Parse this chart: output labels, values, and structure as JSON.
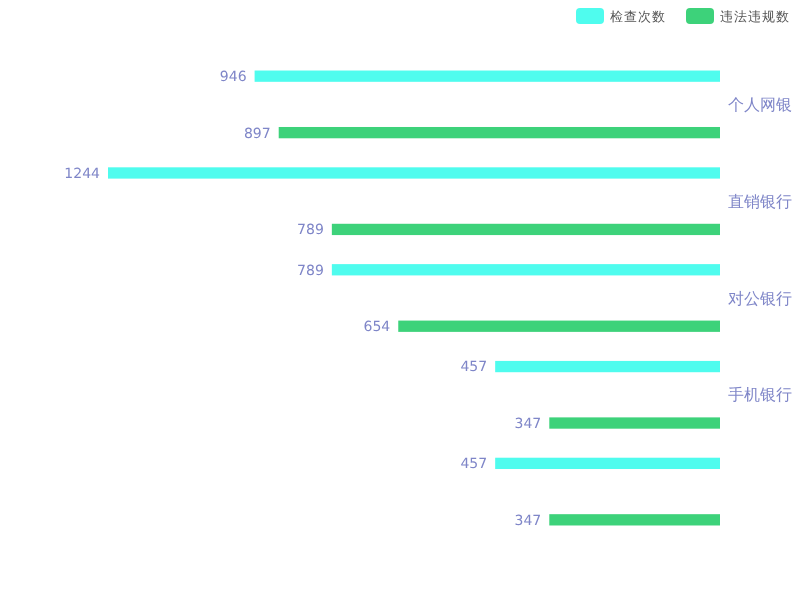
{
  "chart_data": {
    "type": "bar",
    "orientation": "horizontal",
    "categories": [
      "个人网银",
      "直销银行",
      "对公银行",
      "手机银行",
      null
    ],
    "series": [
      {
        "name": "检查次数",
        "color": "#4ffcee",
        "values": [
          946,
          1244,
          789,
          457,
          457
        ]
      },
      {
        "name": "违法违规数",
        "color": "#3dd27a",
        "values": [
          897,
          789,
          654,
          347,
          347
        ]
      }
    ],
    "data_labels": true,
    "legend": "top right"
  }
}
